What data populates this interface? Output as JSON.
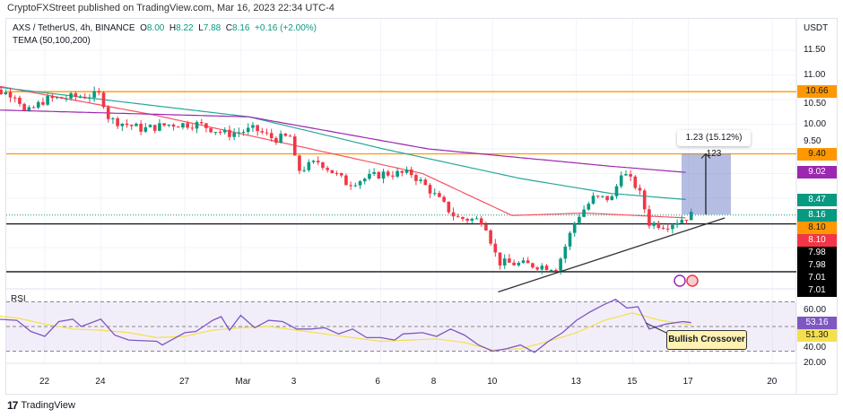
{
  "header": {
    "published": "CryptoFXStreet published on TradingView.com, Mar 16, 2023 22:34 UTC-4"
  },
  "legend": {
    "symbol": "AXS / TetherUS, 4h, BINANCE",
    "o_label": "O",
    "o": "8.00",
    "h_label": "H",
    "h": "8.22",
    "l_label": "L",
    "l": "7.88",
    "c_label": "C",
    "c": "8.16",
    "change": "+0.16 (+2.00%)",
    "indicator": "TEMA (50,100,200)"
  },
  "colors": {
    "up": "#089981",
    "down": "#f23645",
    "orange": "#ff9800",
    "purple": "#9c27b0",
    "green": "#26a69a",
    "red": "#f7525f",
    "rsi": "#7e57c2",
    "rsi_ma": "#f4e04d"
  },
  "chart_data": {
    "type": "candlestick",
    "currency": "USDT",
    "y_ticks": [
      "11.50",
      "11.00",
      "10.50",
      "10.00",
      "9.50"
    ],
    "x_ticks": [
      "22",
      "24",
      "27",
      "Mar",
      "3",
      "6",
      "8",
      "10",
      "13",
      "15",
      "17",
      "20"
    ],
    "x_tick_days": [
      22,
      24,
      27,
      29,
      31,
      34,
      36,
      38,
      41,
      43,
      45,
      48
    ],
    "ylim": [
      6.7,
      12.0
    ],
    "price_path_day_price": [
      [
        19.6,
        11.6
      ],
      [
        20,
        10.7
      ],
      [
        21,
        10.6
      ],
      [
        21.3,
        10.2
      ],
      [
        22,
        10.5
      ],
      [
        24,
        10.6
      ],
      [
        24.3,
        10.1
      ],
      [
        25.5,
        9.9
      ],
      [
        26.5,
        10.0
      ],
      [
        27.5,
        10.0
      ],
      [
        28.5,
        9.8
      ],
      [
        29.5,
        9.9
      ],
      [
        30.2,
        9.7
      ],
      [
        30.8,
        9.75
      ],
      [
        31,
        9.05
      ],
      [
        31.8,
        9.25
      ],
      [
        32.8,
        8.8
      ],
      [
        34.1,
        9.0
      ],
      [
        35.1,
        9.0
      ],
      [
        35.7,
        8.7
      ],
      [
        36.7,
        8.1
      ],
      [
        37.7,
        8.05
      ],
      [
        38.2,
        7.2
      ],
      [
        39.3,
        7.15
      ],
      [
        40.3,
        7.1
      ],
      [
        41,
        8.1
      ],
      [
        41.6,
        8.5
      ],
      [
        42.3,
        8.5
      ],
      [
        42.6,
        9.05
      ],
      [
        43.2,
        8.7
      ],
      [
        43.6,
        8.0
      ],
      [
        44.2,
        7.95
      ],
      [
        45.1,
        8.16
      ]
    ],
    "tema_series": [
      {
        "name": "TEMA 50",
        "color": "#f7525f",
        "points": [
          [
            19.6,
            10.85
          ],
          [
            25.8,
            10.2
          ],
          [
            30.7,
            9.6
          ],
          [
            35.5,
            9.0
          ],
          [
            38.7,
            8.15
          ],
          [
            41.3,
            8.2
          ],
          [
            45,
            8.1
          ]
        ]
      },
      {
        "name": "TEMA 100",
        "color": "#26a69a",
        "points": [
          [
            19.6,
            10.8
          ],
          [
            29.3,
            10.15
          ],
          [
            34.1,
            9.5
          ],
          [
            39,
            8.9
          ],
          [
            42.2,
            8.6
          ],
          [
            45,
            8.47
          ]
        ]
      },
      {
        "name": "TEMA 200",
        "color": "#9c27b0",
        "points": [
          [
            19.6,
            10.3
          ],
          [
            29.3,
            10.15
          ],
          [
            35.7,
            9.5
          ],
          [
            42.2,
            9.15
          ],
          [
            45,
            9.02
          ]
        ]
      }
    ],
    "horizontal_levels": [
      {
        "value": 10.66,
        "label": "10.66",
        "color": "#ff9800",
        "style": "solid"
      },
      {
        "value": 9.4,
        "label": "9.40",
        "color": "#ff9800",
        "style": "solid"
      },
      {
        "value": 8.16,
        "label": "8.16",
        "color": "#089981",
        "style": "dotted"
      },
      {
        "value": 7.98,
        "label": "7.98",
        "color": "#131722",
        "style": "solid"
      },
      {
        "value": 7.01,
        "label": "7.01",
        "color": "#131722",
        "style": "solid"
      }
    ],
    "price_tags": [
      {
        "label": "10.66",
        "value": 10.66,
        "bg": "#ff9800",
        "fg": "#131722"
      },
      {
        "label": "9.40",
        "value": 9.4,
        "bg": "#ff9800",
        "fg": "#131722"
      },
      {
        "label": "9.02",
        "value": 9.02,
        "bg": "#9c27b0",
        "fg": "#fff"
      },
      {
        "label": "8.47",
        "value": 8.47,
        "bg": "#089981",
        "fg": "#fff"
      },
      {
        "label": "8.16",
        "value": 8.16,
        "bg": "#089981",
        "fg": "#fff"
      },
      {
        "label": "8.10",
        "value": 8.1,
        "bg": "#ff9800",
        "fg": "#131722"
      },
      {
        "label": "8.10",
        "value": 8.1,
        "bg": "#f23645",
        "fg": "#fff"
      },
      {
        "label": "7.98",
        "value": 7.98,
        "bg": "#000",
        "fg": "#fff"
      },
      {
        "label": "7.98",
        "value": 7.98,
        "bg": "#000",
        "fg": "#fff"
      },
      {
        "label": "7.01",
        "value": 7.01,
        "bg": "#000",
        "fg": "#fff"
      },
      {
        "label": "7.01",
        "value": 7.01,
        "bg": "#000",
        "fg": "#fff"
      }
    ],
    "trendline": [
      [
        38.2,
        6.6
      ],
      [
        46.3,
        8.1
      ]
    ],
    "measure": {
      "from": 8.17,
      "to": 9.4,
      "label": "1.23 (15.12%) 123"
    },
    "rsi": {
      "label": "RSI",
      "ticks": [
        "60.00",
        "40.00",
        "20.00"
      ],
      "upper": 70,
      "lower": 30,
      "value": "53.16",
      "ma_value": "51.30",
      "path": [
        [
          19.6,
          66
        ],
        [
          20,
          65
        ],
        [
          20.3,
          56
        ],
        [
          21,
          55
        ],
        [
          21.5,
          46
        ],
        [
          22,
          42
        ],
        [
          22.5,
          54
        ],
        [
          23,
          56
        ],
        [
          23.3,
          50
        ],
        [
          24,
          56
        ],
        [
          24.5,
          43
        ],
        [
          25,
          39
        ],
        [
          26,
          38
        ],
        [
          26.2,
          35
        ],
        [
          27,
          45
        ],
        [
          27.4,
          46
        ],
        [
          28,
          55
        ],
        [
          28.3,
          58
        ],
        [
          28.6,
          47
        ],
        [
          29,
          59
        ],
        [
          29.5,
          49
        ],
        [
          30,
          55
        ],
        [
          30.5,
          54
        ],
        [
          31,
          48
        ],
        [
          31.5,
          48
        ],
        [
          32,
          49
        ],
        [
          32.5,
          44
        ],
        [
          33,
          48
        ],
        [
          33.5,
          41
        ],
        [
          34,
          41
        ],
        [
          34.5,
          39
        ],
        [
          34.8,
          44
        ],
        [
          35.5,
          45
        ],
        [
          36,
          42
        ],
        [
          36.5,
          48
        ],
        [
          37,
          43
        ],
        [
          37.5,
          35
        ],
        [
          38,
          30
        ],
        [
          38.5,
          32
        ],
        [
          39,
          35
        ],
        [
          39.5,
          29
        ],
        [
          40,
          38
        ],
        [
          40.5,
          45
        ],
        [
          41,
          55
        ],
        [
          41.5,
          62
        ],
        [
          42,
          68
        ],
        [
          42.4,
          72
        ],
        [
          42.8,
          65
        ],
        [
          43.2,
          66
        ],
        [
          43.6,
          48
        ],
        [
          44.2,
          52
        ],
        [
          44.8,
          54
        ],
        [
          45.1,
          53.16
        ]
      ],
      "ma_path": [
        [
          19.6,
          60
        ],
        [
          21,
          57
        ],
        [
          22,
          52
        ],
        [
          23,
          48
        ],
        [
          24,
          47
        ],
        [
          25,
          45
        ],
        [
          26,
          41
        ],
        [
          27,
          42
        ],
        [
          28,
          47
        ],
        [
          29,
          49
        ],
        [
          30,
          50
        ],
        [
          31,
          47
        ],
        [
          32,
          44
        ],
        [
          33,
          41
        ],
        [
          34,
          38
        ],
        [
          35,
          39
        ],
        [
          36,
          40
        ],
        [
          37,
          37
        ],
        [
          38,
          31
        ],
        [
          39,
          32
        ],
        [
          40,
          38
        ],
        [
          41,
          45
        ],
        [
          42,
          55
        ],
        [
          43,
          61
        ],
        [
          44,
          55
        ],
        [
          45.1,
          51.3
        ]
      ]
    },
    "annotation": "Bullish Crossover"
  },
  "footer": {
    "brand": "TradingView",
    "brand_mark": "17"
  }
}
